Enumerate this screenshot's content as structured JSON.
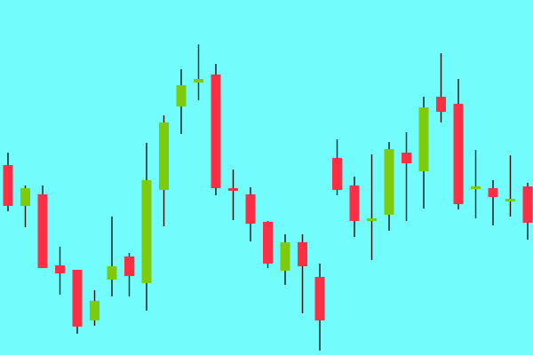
{
  "chart_data": {
    "type": "candlestick",
    "title": "",
    "xlabel": "",
    "ylabel": "",
    "axes_visible": false,
    "grid": false,
    "ylim": [
      0,
      400
    ],
    "colors": {
      "background": "#72FCFC",
      "up": "#7ECB0A",
      "down": "#FF2E45",
      "wick": "#111111"
    },
    "candles": [
      {
        "open": 214,
        "close": 168,
        "high": 228,
        "low": 162
      },
      {
        "open": 168,
        "close": 188,
        "high": 191,
        "low": 144
      },
      {
        "open": 181,
        "close": 98,
        "high": 191,
        "low": 98
      },
      {
        "open": 101,
        "close": 92,
        "high": 122,
        "low": 68
      },
      {
        "open": 96,
        "close": 32,
        "high": 96,
        "low": 24
      },
      {
        "open": 39,
        "close": 61,
        "high": 73,
        "low": 33
      },
      {
        "open": 85,
        "close": 100,
        "high": 156,
        "low": 66
      },
      {
        "open": 111,
        "close": 89,
        "high": 115,
        "low": 66
      },
      {
        "open": 81,
        "close": 197,
        "high": 239,
        "low": 50
      },
      {
        "open": 186,
        "close": 262,
        "high": 270,
        "low": 145
      },
      {
        "open": 280,
        "close": 304,
        "high": 322,
        "low": 249
      },
      {
        "open": 307,
        "close": 311,
        "high": 350,
        "low": 287
      },
      {
        "open": 316,
        "close": 188,
        "high": 328,
        "low": 180
      },
      {
        "open": 188,
        "close": 186,
        "high": 209,
        "low": 152
      },
      {
        "open": 181,
        "close": 148,
        "high": 189,
        "low": 128
      },
      {
        "open": 150,
        "close": 103,
        "high": 151,
        "low": 98
      },
      {
        "open": 95,
        "close": 127,
        "high": 136,
        "low": 79
      },
      {
        "open": 127,
        "close": 100,
        "high": 136,
        "low": 47
      },
      {
        "open": 88,
        "close": 39,
        "high": 103,
        "low": 5
      },
      {
        "open": 222,
        "close": 186,
        "high": 243,
        "low": 180
      },
      {
        "open": 191,
        "close": 151,
        "high": 201,
        "low": 133
      },
      {
        "open": 154,
        "close": 154,
        "high": 226,
        "low": 107
      },
      {
        "open": 158,
        "close": 232,
        "high": 240,
        "low": 140
      },
      {
        "open": 228,
        "close": 216,
        "high": 251,
        "low": 151
      },
      {
        "open": 207,
        "close": 279,
        "high": 291,
        "low": 165
      },
      {
        "open": 291,
        "close": 274,
        "high": 340,
        "low": 262
      },
      {
        "open": 283,
        "close": 170,
        "high": 311,
        "low": 164
      },
      {
        "open": 190,
        "close": 190,
        "high": 231,
        "low": 154
      },
      {
        "open": 188,
        "close": 178,
        "high": 197,
        "low": 146
      },
      {
        "open": 176,
        "close": 176,
        "high": 225,
        "low": 156
      },
      {
        "open": 190,
        "close": 149,
        "high": 194,
        "low": 130
      }
    ]
  }
}
